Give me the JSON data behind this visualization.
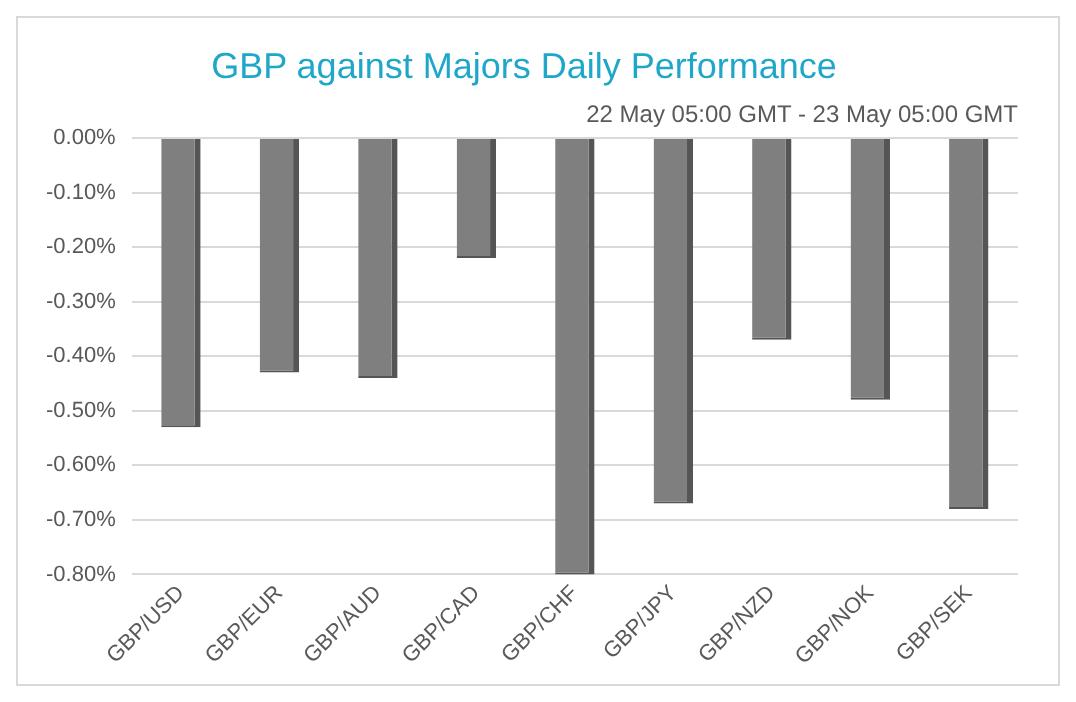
{
  "chart_data": {
    "type": "bar",
    "title": "GBP against Majors Daily Performance",
    "subtitle": "22 May 05:00 GMT - 23 May 05:00 GMT",
    "categories": [
      "GBP/USD",
      "GBP/EUR",
      "GBP/AUD",
      "GBP/CAD",
      "GBP/CHF",
      "GBP/JPY",
      "GBP/NZD",
      "GBP/NOK",
      "GBP/SEK"
    ],
    "values": [
      -0.53,
      -0.43,
      -0.44,
      -0.22,
      -0.8,
      -0.67,
      -0.37,
      -0.48,
      -0.68
    ],
    "color": "#7f7f7f",
    "ylim": [
      -0.8,
      0
    ],
    "yticks": [
      {
        "value": 0,
        "label": "0.00%"
      },
      {
        "value": -0.1,
        "label": "-0.10%"
      },
      {
        "value": -0.2,
        "label": "-0.20%"
      },
      {
        "value": -0.3,
        "label": "-0.30%"
      },
      {
        "value": -0.4,
        "label": "-0.40%"
      },
      {
        "value": -0.5,
        "label": "-0.50%"
      },
      {
        "value": -0.6,
        "label": "-0.60%"
      },
      {
        "value": -0.7,
        "label": "-0.70%"
      },
      {
        "value": -0.8,
        "label": "-0.80%"
      }
    ],
    "grid": "y"
  }
}
